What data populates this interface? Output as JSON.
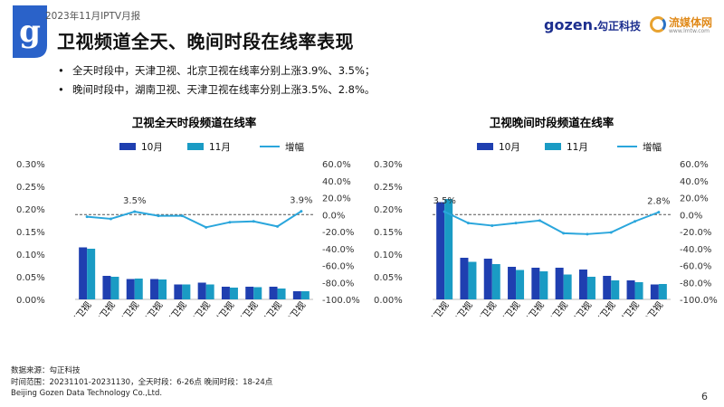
{
  "header": {
    "report_label": "2023年11月IPTV月报",
    "title": "卫视频道全天、晚间时段在线率表现",
    "brand_gozen": "gozen.",
    "brand_gozen_cn": "勾正科技",
    "brand_lmt_cn": "流媒体网",
    "brand_lmt_url": "www.lmtw.com"
  },
  "bullets": [
    "全天时段中，天津卫视、北京卫视在线率分别上涨3.9%、3.5%；",
    "晚间时段中，湖南卫视、天津卫视在线率分别上涨3.5%、2.8%。"
  ],
  "colors": {
    "oct": "#1f3fb0",
    "nov": "#1a9bc4",
    "growth": "#2aa6dc",
    "zero_line": "#555555"
  },
  "chart_data": [
    {
      "type": "bar",
      "title": "卫视全天时段频道在线率",
      "categories": [
        "湖南卫视",
        "东方卫视",
        "北京卫视",
        "浙江卫视",
        "江苏卫视",
        "广东卫视",
        "深圳卫视",
        "东南卫视",
        "四川卫视",
        "天津卫视"
      ],
      "series": [
        {
          "name": "10月",
          "kind": "bar",
          "values": [
            0.115,
            0.052,
            0.045,
            0.045,
            0.033,
            0.037,
            0.028,
            0.028,
            0.028,
            0.018
          ]
        },
        {
          "name": "11月",
          "kind": "bar",
          "values": [
            0.112,
            0.05,
            0.046,
            0.044,
            0.033,
            0.033,
            0.026,
            0.027,
            0.024,
            0.018
          ]
        },
        {
          "name": "增幅",
          "kind": "line",
          "axis": "right",
          "values": [
            -2.5,
            -5.0,
            3.5,
            -1.5,
            -1.5,
            -15.0,
            -9.0,
            -8.0,
            -14.0,
            3.9
          ]
        }
      ],
      "data_labels": [
        "3.5%",
        "3.9%"
      ],
      "y_left": {
        "min": 0,
        "max": 0.3,
        "ticks": [
          "0.00%",
          "0.05%",
          "0.10%",
          "0.15%",
          "0.20%",
          "0.25%",
          "0.30%"
        ]
      },
      "y_right": {
        "min": -100,
        "max": 60,
        "ticks": [
          "-100.0%",
          "-80.0%",
          "-60.0%",
          "-40.0%",
          "-20.0%",
          "0.0%",
          "20.0%",
          "40.0%",
          "60.0%"
        ]
      },
      "legend_position": "top"
    },
    {
      "type": "bar",
      "title": "卫视晚间时段频道在线率",
      "categories": [
        "湖南卫视",
        "北京卫视",
        "东方卫视",
        "江苏卫视",
        "浙江卫视",
        "广东卫视",
        "四川卫视",
        "东南卫视",
        "深圳卫视",
        "天津卫视"
      ],
      "series": [
        {
          "name": "10月",
          "kind": "bar",
          "values": [
            0.215,
            0.092,
            0.09,
            0.072,
            0.07,
            0.07,
            0.066,
            0.052,
            0.042,
            0.033
          ]
        },
        {
          "name": "11月",
          "kind": "bar",
          "values": [
            0.222,
            0.083,
            0.078,
            0.065,
            0.062,
            0.055,
            0.05,
            0.042,
            0.038,
            0.034
          ]
        },
        {
          "name": "增幅",
          "kind": "line",
          "axis": "right",
          "values": [
            3.5,
            -10.0,
            -13.0,
            -10.0,
            -7.0,
            -22.0,
            -23.0,
            -21.0,
            -8.0,
            2.8
          ]
        }
      ],
      "data_labels": [
        "3.5%",
        "2.8%"
      ],
      "y_left": {
        "min": 0,
        "max": 0.3,
        "ticks": [
          "0.00%",
          "0.05%",
          "0.10%",
          "0.15%",
          "0.20%",
          "0.25%",
          "0.30%"
        ]
      },
      "y_right": {
        "min": -100,
        "max": 60,
        "ticks": [
          "-100.0%",
          "-80.0%",
          "-60.0%",
          "-40.0%",
          "-20.0%",
          "0.0%",
          "20.0%",
          "40.0%",
          "60.0%"
        ]
      },
      "legend_position": "top"
    }
  ],
  "footer": {
    "source": "数据来源：勾正科技",
    "range": "时间范围：20231101-20231130，全天时段：6-26点 晚间时段：18-24点",
    "company": "Beijing Gozen Data Technology Co.,Ltd."
  },
  "page_number": "6"
}
